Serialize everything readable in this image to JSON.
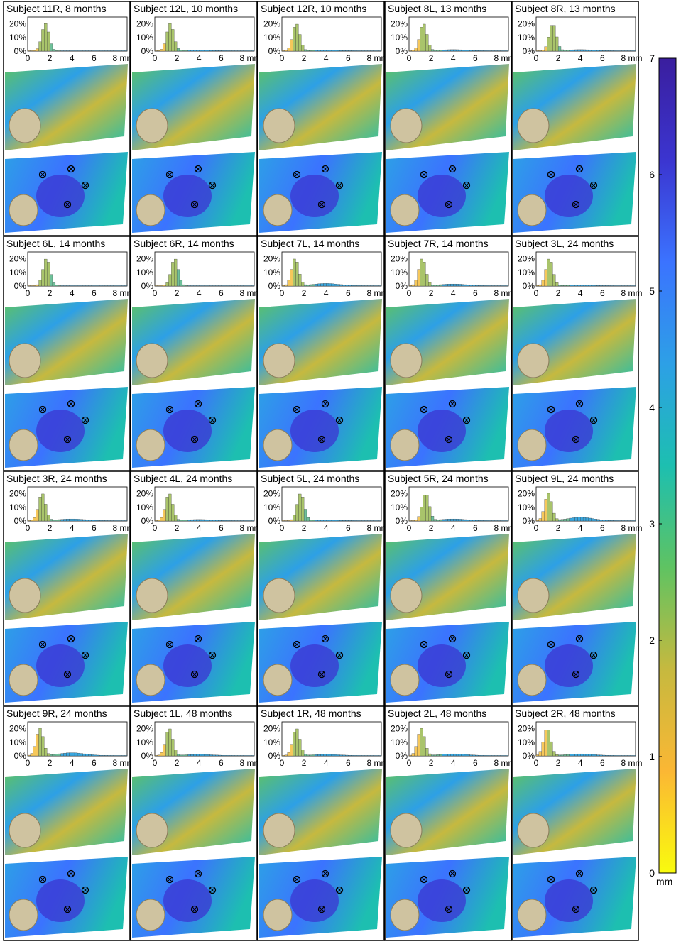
{
  "figure": {
    "unit_label": "mm",
    "panels": [
      {
        "title": "Subject 11R, 8 months",
        "peak": 1.6,
        "tail": 0.0
      },
      {
        "title": "Subject 12L, 10 months",
        "peak": 1.4,
        "tail": 0.1
      },
      {
        "title": "Subject 12R, 10 months",
        "peak": 1.3,
        "tail": 0.1
      },
      {
        "title": "Subject 8L, 13 months",
        "peak": 1.3,
        "tail": 0.2
      },
      {
        "title": "Subject 8R, 13 months",
        "peak": 1.5,
        "tail": 0.2
      },
      {
        "title": "Subject 6L, 14 months",
        "peak": 1.7,
        "tail": 0.0
      },
      {
        "title": "Subject 6R, 14 months",
        "peak": 1.8,
        "tail": 0.0
      },
      {
        "title": "Subject 7L, 14 months",
        "peak": 1.2,
        "tail": 0.4
      },
      {
        "title": "Subject 7R, 14 months",
        "peak": 1.2,
        "tail": 0.3
      },
      {
        "title": "Subject 3L, 24 months",
        "peak": 1.2,
        "tail": 0.1
      },
      {
        "title": "Subject 3R, 24 months",
        "peak": 1.3,
        "tail": 0.3
      },
      {
        "title": "Subject 4L, 24 months",
        "peak": 1.3,
        "tail": 0.2
      },
      {
        "title": "Subject 5L, 24 months",
        "peak": 1.7,
        "tail": 0.1
      },
      {
        "title": "Subject 5R, 24 months",
        "peak": 1.5,
        "tail": 0.3
      },
      {
        "title": "Subject 9L, 24 months",
        "peak": 1.1,
        "tail": 0.6
      },
      {
        "title": "Subject 9R, 24 months",
        "peak": 1.1,
        "tail": 0.5
      },
      {
        "title": "Subject 1L, 48 months",
        "peak": 1.3,
        "tail": 0.2
      },
      {
        "title": "Subject 1R, 48 months",
        "peak": 1.3,
        "tail": 0.2
      },
      {
        "title": "Subject 2L, 48 months",
        "peak": 1.1,
        "tail": 0.3
      },
      {
        "title": "Subject 2R, 48 months",
        "peak": 1.0,
        "tail": 0.3
      }
    ]
  },
  "chart_data": {
    "type": "bar",
    "x_ticks": [
      "0",
      "2",
      "4",
      "6",
      "8 mm"
    ],
    "y_ticks": [
      "0%",
      "10%",
      "20%"
    ],
    "ylim": [
      0,
      25
    ],
    "xlim": [
      0,
      9
    ],
    "colorbar": {
      "ticks": [
        "0",
        "1",
        "2",
        "3",
        "4",
        "5",
        "6",
        "7"
      ],
      "unit": "mm",
      "range": [
        0,
        7
      ],
      "colors": [
        "#f9fb0e",
        "#fbb734",
        "#c6b93f",
        "#5fc362",
        "#1dbfb0",
        "#2da0e6",
        "#3b73ff",
        "#3b35d0",
        "#3a1e9e"
      ]
    }
  }
}
